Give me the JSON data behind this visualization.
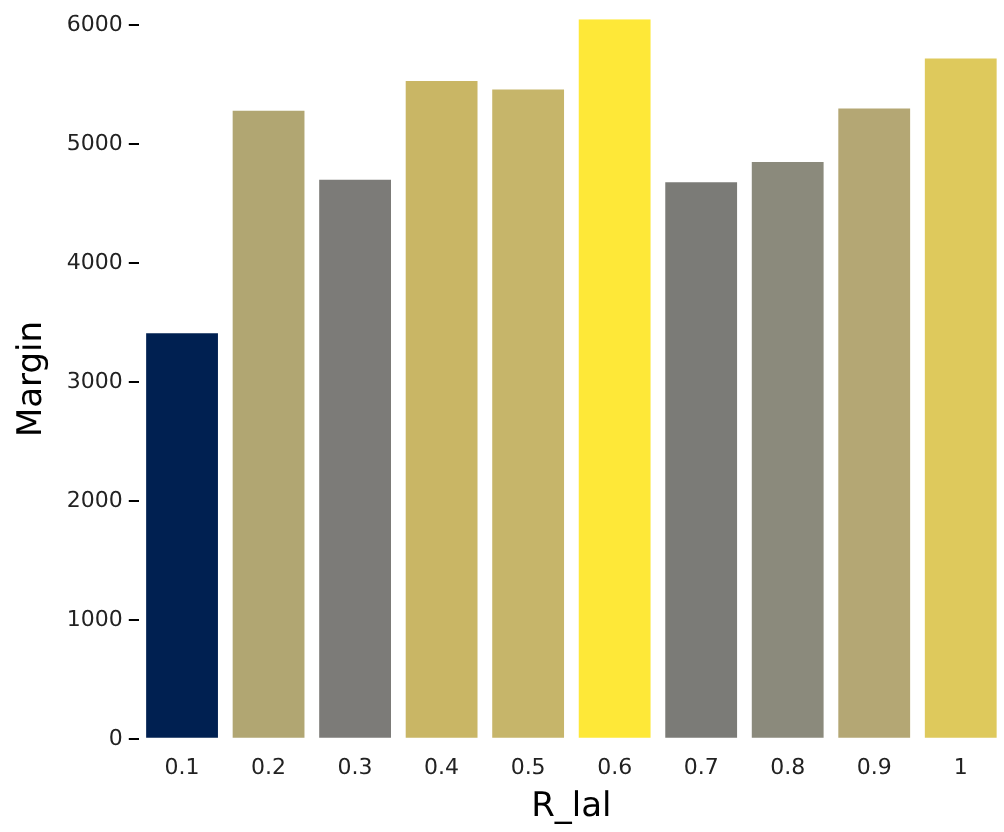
{
  "chart_data": {
    "type": "bar",
    "xlabel": "R_lal",
    "ylabel": "Margin",
    "categories": [
      "0.1",
      "0.2",
      "0.3",
      "0.4",
      "0.5",
      "0.6",
      "0.7",
      "0.8",
      "0.9",
      "1"
    ],
    "values": [
      3410,
      5280,
      4700,
      5530,
      5460,
      6050,
      4680,
      4850,
      5300,
      5720
    ],
    "colors": [
      "#002051",
      "#b1a672",
      "#7c7b78",
      "#c9b665",
      "#c6b56a",
      "#fee838",
      "#7b7b77",
      "#8b8a7c",
      "#b4a774",
      "#dec95c"
    ],
    "ylim": [
      0,
      6050
    ],
    "yticks": [
      0,
      1000,
      2000,
      3000,
      4000,
      5000,
      6000
    ],
    "grid": false
  }
}
